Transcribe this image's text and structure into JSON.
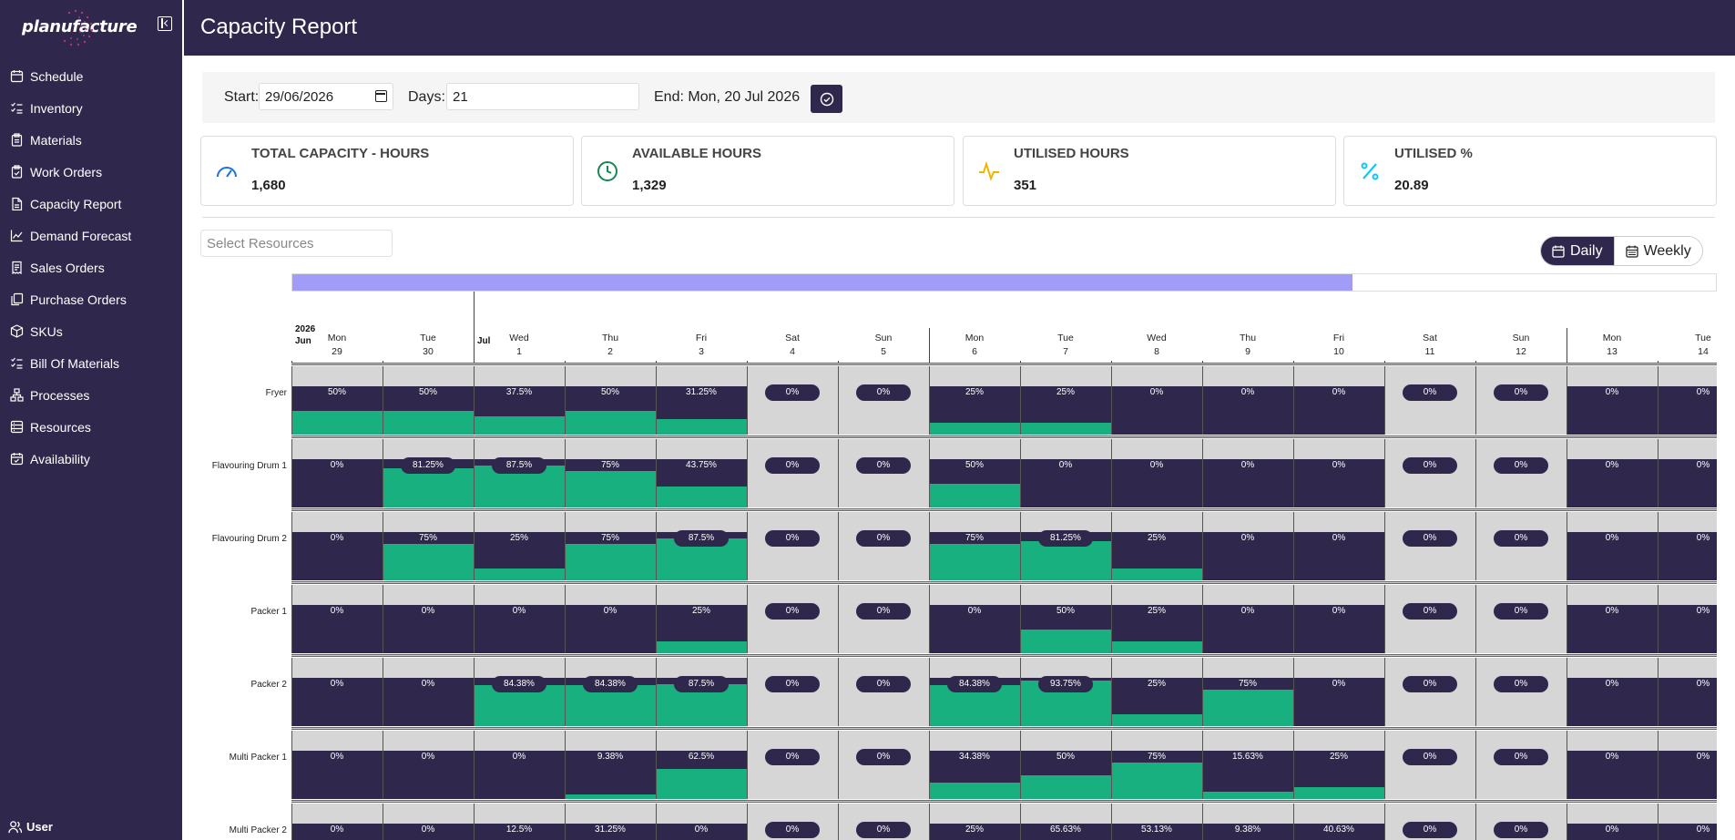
{
  "app": {
    "brand": "planufacture",
    "page_title": "Capacity Report"
  },
  "sidebar": {
    "items": [
      {
        "label": "Schedule",
        "icon": "calendar-icon"
      },
      {
        "label": "Inventory",
        "icon": "list-check-icon"
      },
      {
        "label": "Materials",
        "icon": "clipboard-icon"
      },
      {
        "label": "Work Orders",
        "icon": "clipboard-check-icon"
      },
      {
        "label": "Capacity Report",
        "icon": "document-icon"
      },
      {
        "label": "Demand Forecast",
        "icon": "line-chart-icon"
      },
      {
        "label": "Sales Orders",
        "icon": "receipt-icon"
      },
      {
        "label": "Purchase Orders",
        "icon": "copy-document-icon"
      },
      {
        "label": "SKUs",
        "icon": "box-icon"
      },
      {
        "label": "Bill Of Materials",
        "icon": "list-check-icon"
      },
      {
        "label": "Processes",
        "icon": "flow-icon"
      },
      {
        "label": "Resources",
        "icon": "server-icon"
      },
      {
        "label": "Availability",
        "icon": "calendar-check-icon"
      }
    ],
    "user_label": "User"
  },
  "controls": {
    "start_label": "Start:",
    "start_value": "29/06/2026",
    "days_label": "Days:",
    "days_value": "21",
    "end_text": "End: Mon, 20 Jul 2026"
  },
  "stats": [
    {
      "title": "TOTAL CAPACITY - HOURS",
      "value": "1,680",
      "icon": "gauge-icon",
      "color": "#1a73e8"
    },
    {
      "title": "AVAILABLE HOURS",
      "value": "1,329",
      "icon": "clock-icon",
      "color": "#198754"
    },
    {
      "title": "UTILISED HOURS",
      "value": "351",
      "icon": "activity-icon",
      "color": "#f0b400"
    },
    {
      "title": "UTILISED %",
      "value": "20.89",
      "icon": "percent-icon",
      "color": "#0dcaf0"
    }
  ],
  "resource_select": {
    "placeholder": "Select Resources"
  },
  "view_toggle": {
    "daily": "Daily",
    "weekly": "Weekly",
    "active": "daily"
  },
  "timeline": {
    "scroll_position": 0.745,
    "months": [
      {
        "year": "2026",
        "month": "Jun"
      },
      {
        "year": "",
        "month": "Jul"
      }
    ],
    "days": [
      {
        "dow": "Mon",
        "day": "29",
        "weekend": false
      },
      {
        "dow": "Tue",
        "day": "30",
        "weekend": false
      },
      {
        "dow": "Wed",
        "day": "1",
        "weekend": false
      },
      {
        "dow": "Thu",
        "day": "2",
        "weekend": false
      },
      {
        "dow": "Fri",
        "day": "3",
        "weekend": false
      },
      {
        "dow": "Sat",
        "day": "4",
        "weekend": true
      },
      {
        "dow": "Sun",
        "day": "5",
        "weekend": true
      },
      {
        "dow": "Mon",
        "day": "6",
        "weekend": false
      },
      {
        "dow": "Tue",
        "day": "7",
        "weekend": false
      },
      {
        "dow": "Wed",
        "day": "8",
        "weekend": false
      },
      {
        "dow": "Thu",
        "day": "9",
        "weekend": false
      },
      {
        "dow": "Fri",
        "day": "10",
        "weekend": false
      },
      {
        "dow": "Sat",
        "day": "11",
        "weekend": true
      },
      {
        "dow": "Sun",
        "day": "12",
        "weekend": true
      },
      {
        "dow": "Mon",
        "day": "13",
        "weekend": false
      },
      {
        "dow": "Tue",
        "day": "14",
        "weekend": false
      }
    ],
    "resources": [
      {
        "name": "Fryer",
        "values": [
          "50%",
          "50%",
          "37.5%",
          "50%",
          "31.25%",
          "0%",
          "0%",
          "25%",
          "25%",
          "0%",
          "0%",
          "0%",
          "0%",
          "0%",
          "0%",
          "0%"
        ]
      },
      {
        "name": "Flavouring Drum 1",
        "values": [
          "0%",
          "81.25%",
          "87.5%",
          "75%",
          "43.75%",
          "0%",
          "0%",
          "50%",
          "0%",
          "0%",
          "0%",
          "0%",
          "0%",
          "0%",
          "0%",
          "0%"
        ]
      },
      {
        "name": "Flavouring Drum 2",
        "values": [
          "0%",
          "75%",
          "25%",
          "75%",
          "87.5%",
          "0%",
          "0%",
          "75%",
          "81.25%",
          "25%",
          "0%",
          "0%",
          "0%",
          "0%",
          "0%",
          "0%"
        ]
      },
      {
        "name": "Packer 1",
        "values": [
          "0%",
          "0%",
          "0%",
          "0%",
          "25%",
          "0%",
          "0%",
          "0%",
          "50%",
          "25%",
          "0%",
          "0%",
          "0%",
          "0%",
          "0%",
          "0%"
        ]
      },
      {
        "name": "Packer 2",
        "values": [
          "0%",
          "0%",
          "84.38%",
          "84.38%",
          "87.5%",
          "0%",
          "0%",
          "84.38%",
          "93.75%",
          "25%",
          "75%",
          "0%",
          "0%",
          "0%",
          "0%",
          "0%"
        ]
      },
      {
        "name": "Multi Packer 1",
        "values": [
          "0%",
          "0%",
          "0%",
          "9.38%",
          "62.5%",
          "0%",
          "0%",
          "34.38%",
          "50%",
          "75%",
          "15.63%",
          "25%",
          "0%",
          "0%",
          "0%",
          "0%"
        ]
      },
      {
        "name": "Multi Packer 2",
        "values": [
          "0%",
          "0%",
          "12.5%",
          "31.25%",
          "0%",
          "0%",
          "0%",
          "25%",
          "65.63%",
          "53.13%",
          "9.38%",
          "40.63%",
          "0%",
          "0%",
          "0%",
          "0%"
        ]
      }
    ]
  }
}
